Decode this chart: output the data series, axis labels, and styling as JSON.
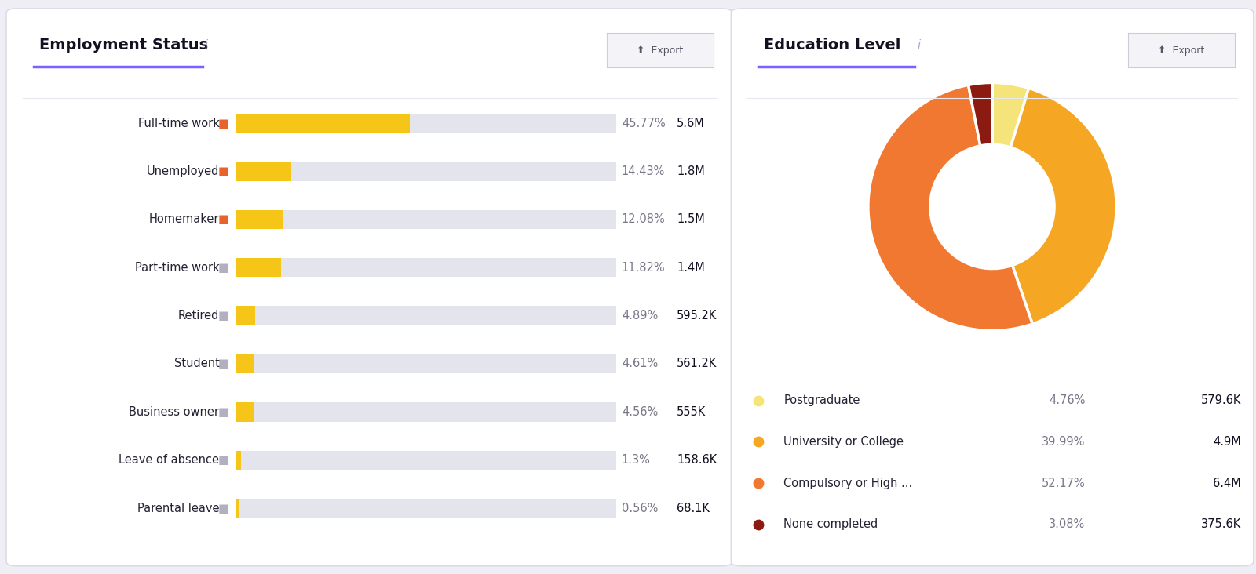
{
  "emp_title": "Employment Status",
  "edu_title": "Education Level",
  "background": "#eeeef4",
  "panel_bg": "#ffffff",
  "bar_color": "#F5C518",
  "bar_bg": "#e4e4ed",
  "bar_labels": [
    "Full-time work",
    "Unemployed",
    "Homemaker",
    "Part-time work",
    "Retired",
    "Student",
    "Business owner",
    "Leave of absence",
    "Parental leave"
  ],
  "bar_pct": [
    45.77,
    14.43,
    12.08,
    11.82,
    4.89,
    4.61,
    4.56,
    1.3,
    0.56
  ],
  "bar_vals": [
    "5.6M",
    "1.8M",
    "1.5M",
    "1.4M",
    "595.2K",
    "561.2K",
    "555K",
    "158.6K",
    "68.1K"
  ],
  "bar_pct_str": [
    "45.77%",
    "14.43%",
    "12.08%",
    "11.82%",
    "4.89%",
    "4.61%",
    "4.56%",
    "1.3%",
    "0.56%"
  ],
  "donut_labels": [
    "Postgraduate",
    "University or College",
    "Compulsory or High ...",
    "None completed"
  ],
  "donut_pct": [
    4.76,
    39.99,
    52.17,
    3.08
  ],
  "donut_pct_str": [
    "4.76%",
    "39.99%",
    "52.17%",
    "3.08%"
  ],
  "donut_vals": [
    "579.6K",
    "4.9M",
    "6.4M",
    "375.6K"
  ],
  "donut_colors": [
    "#F5E47A",
    "#F5A623",
    "#F07830",
    "#8B1A10"
  ],
  "donut_startangle": 90,
  "title_color": "#111122",
  "label_color": "#222233",
  "pct_color": "#777788",
  "val_color": "#111122",
  "purple_line": "#7B61FF",
  "export_btn_bg": "#f4f4f8",
  "export_btn_border": "#ccccdd",
  "icon_color_active": "#E8622A",
  "icon_color_inactive": "#b0b0c0"
}
